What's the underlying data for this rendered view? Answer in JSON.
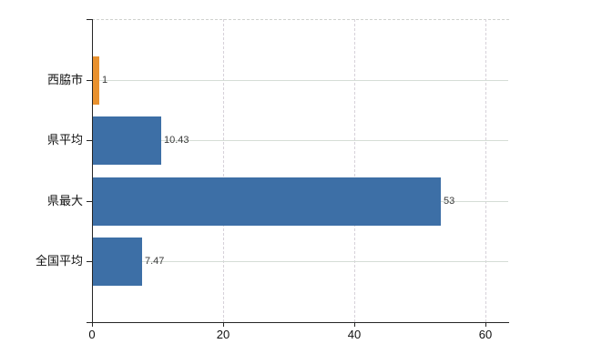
{
  "chart_data": {
    "type": "bar",
    "orientation": "horizontal",
    "title": "",
    "categories": [
      "西脇市",
      "県平均",
      "県最大",
      "全国平均"
    ],
    "values": [
      1,
      10.43,
      53,
      7.47
    ],
    "value_labels": [
      "1",
      "10.43",
      "53",
      "7.47"
    ],
    "x_ticks": [
      0,
      20,
      40,
      60
    ],
    "x_tick_labels": [
      "0",
      "20",
      "40",
      "60"
    ],
    "xlim": [
      0,
      63.5
    ],
    "grid": "on",
    "legend": "none",
    "colors": {
      "highlight_bar": "#e8912e",
      "default_bar": "#3d6fa6",
      "axis": "#262626"
    },
    "bar_colors": [
      "#e8912e",
      "#3d6fa6",
      "#3d6fa6",
      "#3d6fa6"
    ]
  }
}
